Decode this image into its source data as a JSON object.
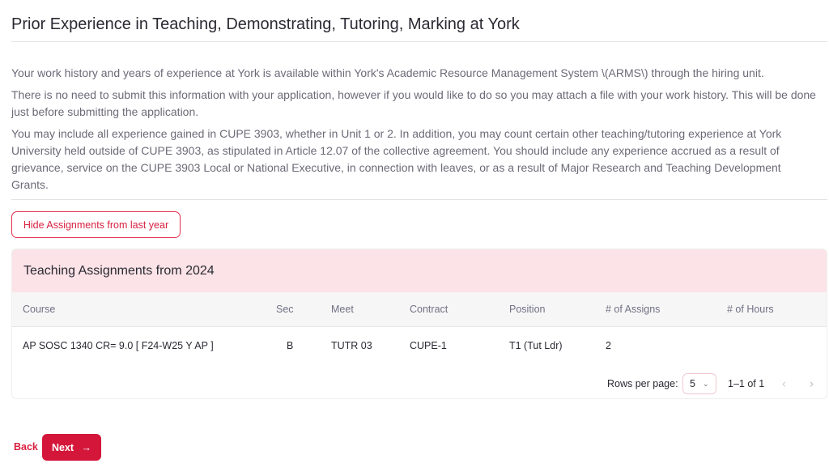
{
  "page": {
    "title": "Prior Experience in Teaching, Demonstrating, Tutoring, Marking at York",
    "paragraphs": [
      "Your work history and years of experience at York is available within York's Academic Resource Management System \\(ARMS\\) through the hiring unit.",
      "There is no need to submit this information with your application, however if you would like to do so you may attach a file with your work history. This will be done just before submitting the application.",
      "You may include all experience gained in CUPE 3903, whether in Unit 1 or 2. In addition, you may count certain other teaching/tutoring experience at York University held outside of CUPE 3903, as stipulated in Article 12.07 of the collective agreement. You should include any experience accrued as a result of grievance, service on the CUPE 3903 Local or National Executive, in connection with leaves, or as a result of Major Research and Teaching Development Grants."
    ]
  },
  "hide_button": "Hide Assignments from last year",
  "table": {
    "title": "Teaching Assignments from 2024",
    "columns": [
      "Course",
      "Sec",
      "Meet",
      "Contract",
      "Position",
      "# of Assigns",
      "# of Hours"
    ],
    "rows": [
      [
        "AP SOSC 1340 CR= 9.0 [ F24-W25 Y AP ]",
        "B",
        "TUTR 03",
        "CUPE-1",
        "T1 (Tut Ldr)",
        "2",
        ""
      ]
    ],
    "pagination": {
      "rows_per_page_label": "Rows per page:",
      "rows_per_page": "5",
      "range": "1–1 of 1"
    }
  },
  "nav": {
    "back": "Back",
    "next": "Next"
  },
  "colors": {
    "accent": "#d3163a",
    "header_bg": "#fce3e7"
  }
}
